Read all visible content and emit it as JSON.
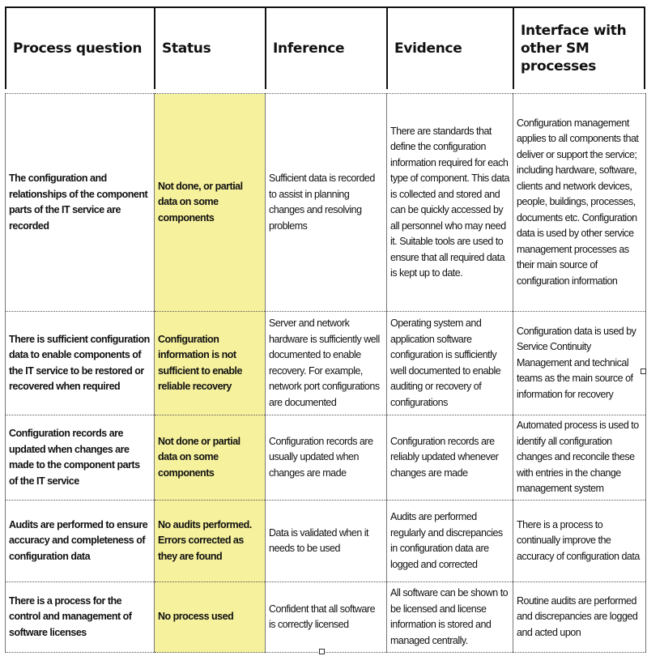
{
  "headers": [
    "Process question",
    "Status",
    "Inference",
    "Evidence",
    "Interface with other SM processes"
  ],
  "colors": {
    "status_fill": "#f6f19c"
  },
  "rows": [
    {
      "question": "The configuration and relationships of the component parts of the IT service are recorded",
      "status": "Not done, or partial data on some components",
      "inference": "Sufficient data is recorded to assist in planning changes and resolving problems",
      "evidence": "There are  standards that define the  configuration information required for each type of component. This data is collected and stored and can be quickly accessed by all personnel who may need it. Suitable tools are used to ensure that all required data is kept up to date.",
      "interface": "Configuration management applies to all components that deliver or support the service; including hardware, software, clients and network devices, people, buildings, processes, documents etc. Configuration data is used by other service management processes as their main source of configuration information"
    },
    {
      "question": "There is sufficient configuration data to enable components of the IT service to be restored or recovered when required",
      "status": "Configuration information is not sufficient to enable reliable recovery",
      "inference": "Server and network hardware is sufficiently well documented to enable recovery. For example, network port configurations are documented",
      "evidence": "Operating system and application software configuration is sufficiently well documented to enable auditing or recovery of configurations",
      "interface": "Configuration data is used by Service Continuity Management and technical teams as the main source of information for recovery"
    },
    {
      "question": "Configuration records are updated when changes are made to the component parts of the IT service",
      "status": "Not done or partial data on some components",
      "inference": "Configuration records are usually updated when changes are made",
      "evidence": "Configuration records are reliably updated whenever changes are made",
      "interface": "Automated process is used to identify all  configuration changes and reconcile these with entries in the change management system"
    },
    {
      "question": "Audits are performed to ensure accuracy and completeness of configuration data",
      "status": "No audits performed. Errors corrected as they are found",
      "inference": "Data is validated when it needs to be used",
      "evidence": "Audits are performed regularly and  discrepancies in configuration data are logged and corrected",
      "interface": "There is a process to continually improve the accuracy of configuration data"
    },
    {
      "question": "There is a process for the control and management of software licenses",
      "status": "No process used",
      "inference": "Confident that all software is correctly licensed",
      "evidence": "All software can be shown to be licensed and license information is stored and managed centrally.",
      "interface": "Routine audits are performed and discrepancies are logged and acted upon"
    }
  ]
}
